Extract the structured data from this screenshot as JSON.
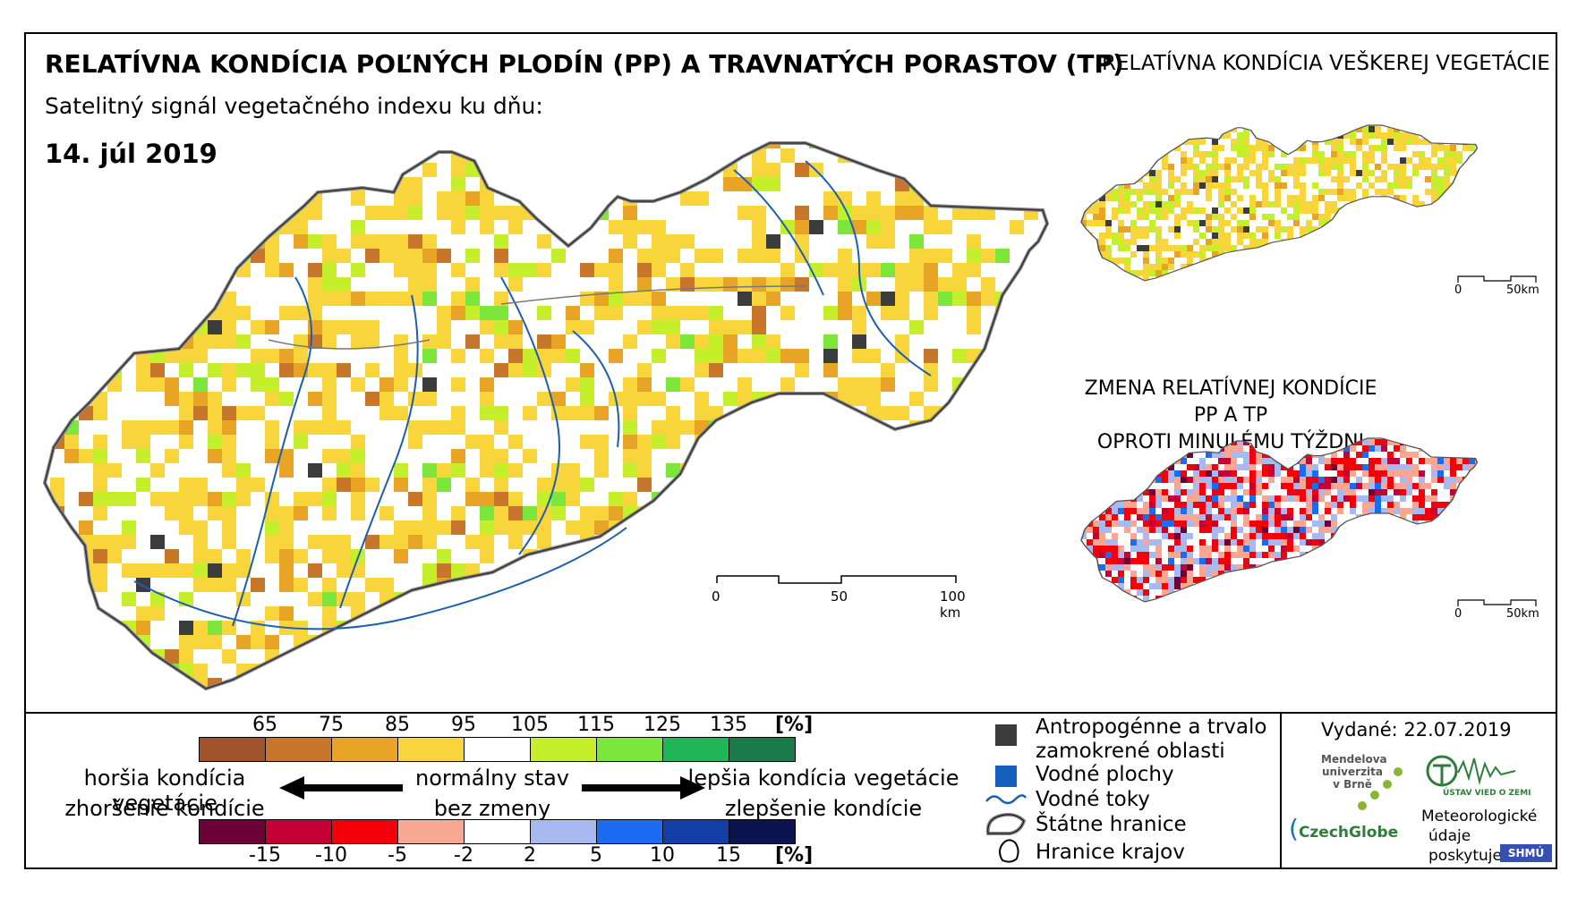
{
  "title": "RELATÍVNA KONDÍCIA POĽNÝCH PLODÍN (PP) A TRAVNATÝCH PORASTOV (TP)",
  "subtitle": "Satelitný signál vegetačného indexu ku dňu:",
  "date": "14. júl 2019",
  "side_maps": {
    "top_title": "RELATÍVNA KONDÍCIA VEŠKEREJ VEGETÁCIE",
    "bottom_title_line1": "ZMENA RELATÍVNEJ KONDÍCIE PP A TP",
    "bottom_title_line2": "OPROTI MINULÉMU TÝŽDNI"
  },
  "scalebars": {
    "main": {
      "zero": "0",
      "mid": "50",
      "end": "100 km"
    },
    "small_top": {
      "zero": "0",
      "end": "50km"
    },
    "small_bottom": {
      "zero": "0",
      "end": "50km"
    }
  },
  "legend": {
    "condition_ramp": {
      "colors": [
        "#a0522d",
        "#c9762d",
        "#e8a525",
        "#f8d53a",
        "#ffffff",
        "#c6ef2b",
        "#7de63a",
        "#20b557",
        "#1a7a4a"
      ],
      "ticks": [
        "65",
        "75",
        "85",
        "95",
        "105",
        "115",
        "125",
        "135"
      ],
      "unit": "[%]"
    },
    "change_ramp": {
      "colors": [
        "#6d0036",
        "#c40034",
        "#f4000a",
        "#f9a793",
        "#ffffff",
        "#a8b8f0",
        "#1c6cf0",
        "#123fa6",
        "#0b1450"
      ],
      "ticks": [
        "-15",
        "-10",
        "-5",
        "-2",
        "2",
        "5",
        "10",
        "15"
      ],
      "unit": "[%]"
    },
    "worse_1": "horšia kondícia vegetácie",
    "worse_2": "zhoršenie kondície",
    "normal_1": "normálny stav",
    "normal_2": "bez zmeny",
    "better_1": "lepšia kondícia vegetácie",
    "better_2": "zlepšenie kondície"
  },
  "symbols": {
    "urban_1": "Antropogénne a trvalo",
    "urban_2": "zamokrené oblasti",
    "water_bodies": "Vodné plochy",
    "rivers": "Vodné toky",
    "borders": "Štátne hranice",
    "regions": "Hranice krajov",
    "colors": {
      "urban": "#3c3c3c",
      "water": "#1560bd",
      "river": "#1c5fae"
    }
  },
  "issued": "Vydané: 22.07.2019",
  "credits": {
    "mendel_1": "Mendelova",
    "mendel_2": "univerzita",
    "mendel_3": "v Brně",
    "czechglobe": "CzechGlobe",
    "institute": "ÚSTAV VIED O ZEMI",
    "met_1": "Meteorologické",
    "met_2": "údaje",
    "met_3": "poskytuje:",
    "shmu": "SHMÚ"
  }
}
